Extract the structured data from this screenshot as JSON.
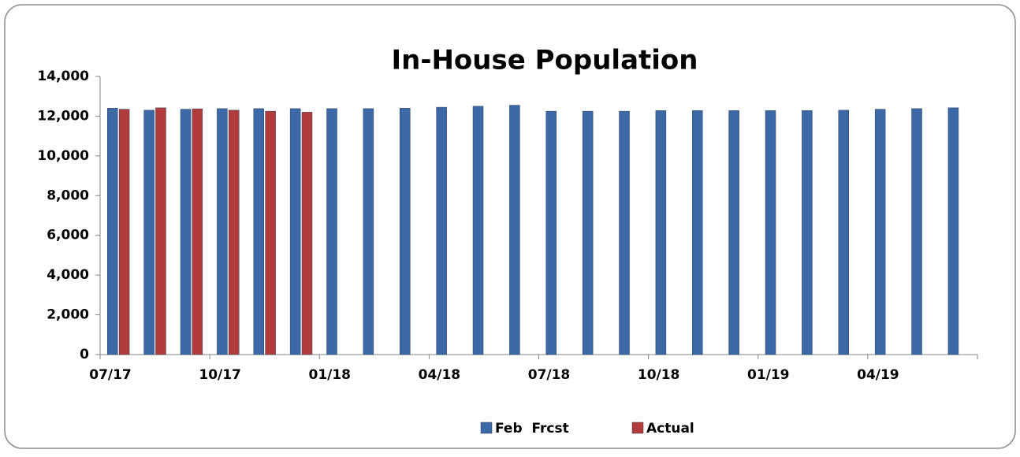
{
  "chart_data": {
    "type": "bar",
    "title": "In-House Population",
    "categories": [
      "07/17",
      null,
      null,
      "10/17",
      null,
      null,
      "01/18",
      null,
      null,
      "04/18",
      null,
      null,
      "07/18",
      null,
      null,
      "10/18",
      null,
      null,
      "01/19",
      null,
      null,
      "04/19",
      null,
      null
    ],
    "series": [
      {
        "name": "Feb  Frcst",
        "color": "#3d68a6",
        "values": [
          12400,
          12300,
          12350,
          12380,
          12380,
          12380,
          12380,
          12380,
          12400,
          12450,
          12500,
          12550,
          12250,
          12250,
          12250,
          12280,
          12280,
          12280,
          12280,
          12280,
          12300,
          12350,
          12380,
          12420
        ]
      },
      {
        "name": "Actual",
        "color": "#b23b3b",
        "values": [
          12350,
          12420,
          12370,
          12300,
          12250,
          12200,
          null,
          null,
          null,
          null,
          null,
          null,
          null,
          null,
          null,
          null,
          null,
          null,
          null,
          null,
          null,
          null,
          null,
          null
        ]
      }
    ],
    "ylim": [
      0,
      14000
    ],
    "yticks": [
      0,
      {
        "value": 2000,
        "label": "2,000"
      },
      {
        "value": 4000,
        "label": "4,000"
      },
      {
        "value": 6000,
        "label": "6,000"
      },
      {
        "value": 8000,
        "label": "8,000"
      },
      {
        "value": 10000,
        "label": "10,000"
      },
      {
        "value": 12000,
        "label": "12,000"
      },
      {
        "value": 14000,
        "label": "14,000"
      }
    ],
    "grid": false,
    "legend": "bottom"
  }
}
